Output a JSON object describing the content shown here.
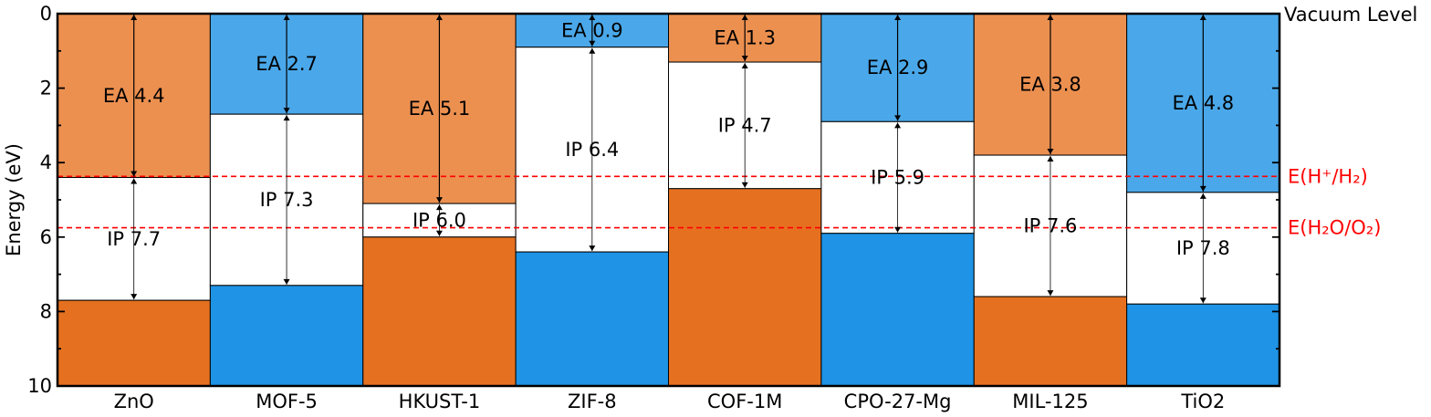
{
  "chart_data": {
    "type": "bar",
    "ylabel": "Energy (eV)",
    "ylim": [
      0,
      10
    ],
    "y_inverted": true,
    "yticks": [
      "0",
      "2",
      "4",
      "6",
      "8",
      "10"
    ],
    "top_right_label": "Vacuum Level",
    "categories": [
      "ZnO",
      "MOF-5",
      "HKUST-1",
      "ZIF-8",
      "COF-1M",
      "CPO-27-Mg",
      "MIL-125",
      "TiO2"
    ],
    "series": [
      {
        "name": "EA",
        "values": [
          4.4,
          2.7,
          5.1,
          0.9,
          1.3,
          2.9,
          3.8,
          4.8
        ]
      },
      {
        "name": "IP",
        "values": [
          7.7,
          7.3,
          6.0,
          6.4,
          4.7,
          5.9,
          7.6,
          7.8
        ]
      }
    ],
    "ea_labels": [
      "EA 4.4",
      "EA 2.7",
      "EA 5.1",
      "EA 0.9",
      "EA 1.3",
      "EA 2.9",
      "EA 3.8",
      "EA 4.8"
    ],
    "ip_labels": [
      "IP 7.7",
      "IP 7.3",
      "IP 6.0",
      "IP 6.4",
      "IP 4.7",
      "IP 5.9",
      "IP 7.6",
      "IP 7.8"
    ],
    "bar_colors": [
      "#ec9050",
      "#4aa8ea",
      "#ec9050",
      "#4aa8ea",
      "#ec9050",
      "#4aa8ea",
      "#ec9050",
      "#4aa8ea"
    ],
    "bottom_colors": [
      "#e57120",
      "#1f93e5",
      "#e57120",
      "#1f93e5",
      "#e57120",
      "#1f93e5",
      "#e57120",
      "#1f93e5"
    ],
    "reference_lines": [
      {
        "label": "E(H⁺/H₂)",
        "value": 4.37
      },
      {
        "label": "E(H₂O/O₂)",
        "value": 5.75
      }
    ],
    "reference_color": "#ff0000",
    "grid": false
  }
}
